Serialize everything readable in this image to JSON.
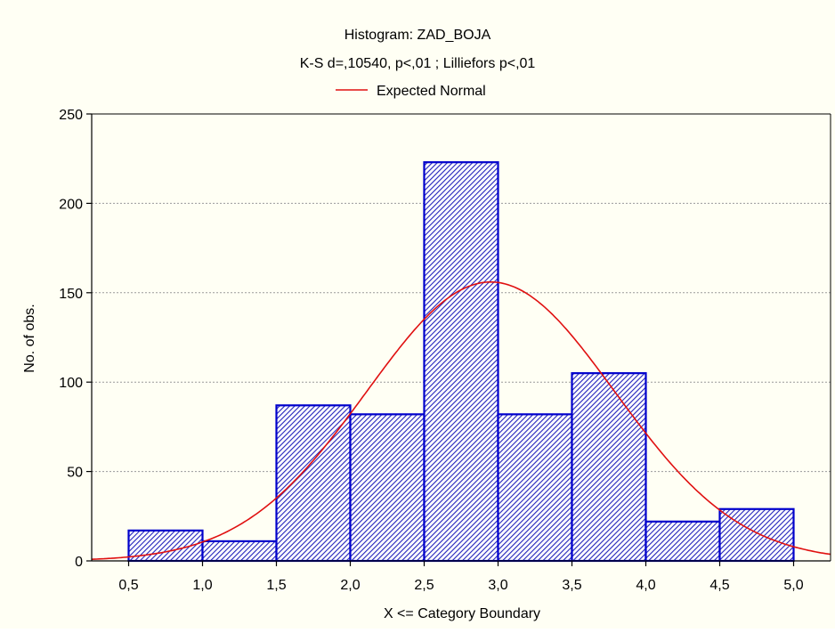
{
  "chart_data": {
    "type": "bar",
    "title": "Histogram: ZAD_BOJA",
    "subtitle": "K-S d=,10540, p<,01 ; Lilliefors p<,01",
    "xlabel": "X <= Category Boundary",
    "ylabel": "No. of obs.",
    "legend": [
      {
        "name": "Expected Normal",
        "color": "#e01010"
      }
    ],
    "legend_placement": "top-center",
    "xlim": [
      0.25,
      5.25
    ],
    "ylim": [
      0,
      250
    ],
    "x_ticks": [
      0.5,
      1.0,
      1.5,
      2.0,
      2.5,
      3.0,
      3.5,
      4.0,
      4.5,
      5.0
    ],
    "x_tick_labels": [
      "0,5",
      "1,0",
      "1,5",
      "2,0",
      "2,5",
      "3,0",
      "3,5",
      "4,0",
      "4,5",
      "5,0"
    ],
    "y_ticks": [
      0,
      50,
      100,
      150,
      200,
      250
    ],
    "y_tick_labels": [
      "0",
      "50",
      "100",
      "150",
      "200",
      "250"
    ],
    "grid": true,
    "bins": [
      {
        "lower": 0.5,
        "upper": 1.0,
        "count": 17
      },
      {
        "lower": 1.0,
        "upper": 1.5,
        "count": 11
      },
      {
        "lower": 1.5,
        "upper": 2.0,
        "count": 87
      },
      {
        "lower": 2.0,
        "upper": 2.5,
        "count": 82
      },
      {
        "lower": 2.5,
        "upper": 3.0,
        "count": 223
      },
      {
        "lower": 3.0,
        "upper": 3.5,
        "count": 82
      },
      {
        "lower": 3.5,
        "upper": 4.0,
        "count": 105
      },
      {
        "lower": 4.0,
        "upper": 4.5,
        "count": 22
      },
      {
        "lower": 4.5,
        "upper": 5.0,
        "count": 29
      }
    ],
    "expected_normal": {
      "mean": 2.95,
      "sd": 0.84,
      "peak": 156,
      "color": "#e01010"
    },
    "bar_color": "#0000cc",
    "bar_hatch_color": "#2222bb",
    "background": "#fffff4"
  }
}
